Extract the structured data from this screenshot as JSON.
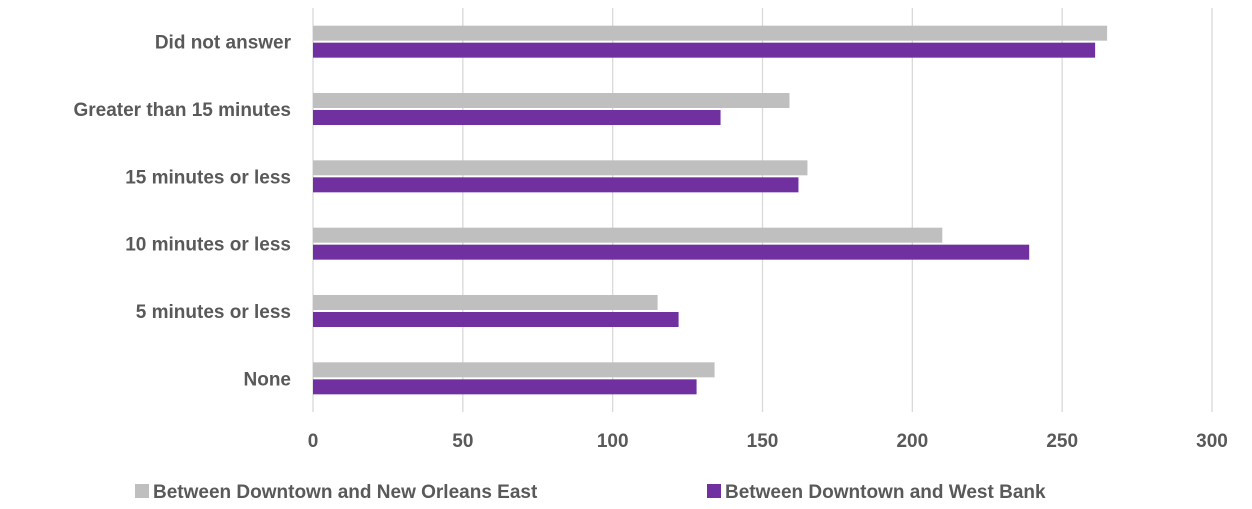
{
  "chart_data": {
    "type": "bar",
    "orientation": "horizontal",
    "categories": [
      "Did not answer",
      "Greater than 15 minutes",
      "15 minutes or less",
      "10 minutes or less",
      "5 minutes or less",
      "None"
    ],
    "series": [
      {
        "name": "Between Downtown and New Orleans East",
        "color": "#bfbfbf",
        "values": [
          265,
          159,
          165,
          210,
          115,
          134
        ]
      },
      {
        "name": "Between Downtown and West Bank",
        "color": "#7030a0",
        "values": [
          261,
          136,
          162,
          239,
          122,
          128
        ]
      }
    ],
    "xlim": [
      0,
      300
    ],
    "xticks": [
      "0",
      "50",
      "100",
      "150",
      "200",
      "250",
      "300"
    ],
    "grid": true,
    "legend_position": "bottom",
    "title": "",
    "xlabel": "",
    "ylabel": ""
  }
}
